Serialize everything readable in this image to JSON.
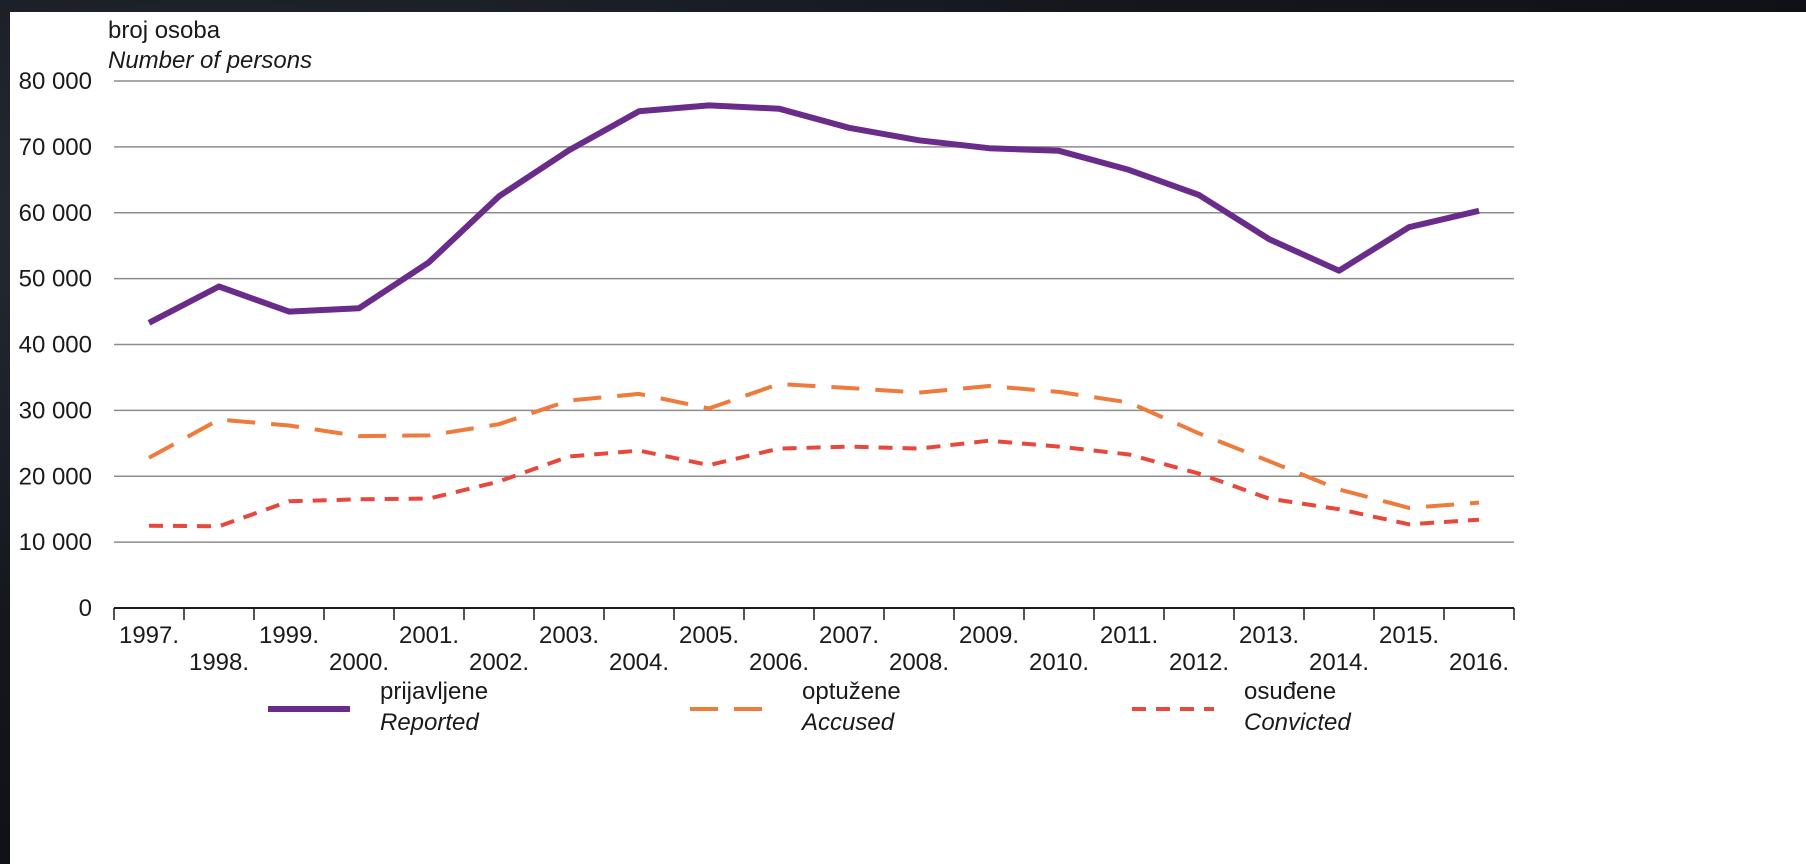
{
  "chart_data": {
    "type": "line",
    "ylabel_hr": "broj osoba",
    "ylabel_en": "Number of persons",
    "x": [
      "1997.",
      "1998.",
      "1999.",
      "2000.",
      "2001.",
      "2002.",
      "2003.",
      "2004.",
      "2005.",
      "2006.",
      "2007.",
      "2008.",
      "2009.",
      "2010.",
      "2011.",
      "2012.",
      "2013.",
      "2014.",
      "2015.",
      "2016."
    ],
    "ylim": [
      0,
      80000
    ],
    "yticks": [
      0,
      10000,
      20000,
      30000,
      40000,
      50000,
      60000,
      70000,
      80000
    ],
    "ytick_labels": [
      "0",
      "10 000",
      "20 000",
      "30 000",
      "40 000",
      "50 000",
      "60 000",
      "70 000",
      "80 000"
    ],
    "grid": "horizontal",
    "legend_position": "bottom",
    "series": [
      {
        "name_hr": "prijavljene",
        "name_en": "Reported",
        "style": "solid",
        "color": "#6a2c8a",
        "values": [
          43300,
          48800,
          45000,
          45500,
          52500,
          62500,
          69500,
          75400,
          76300,
          75800,
          72900,
          71000,
          69800,
          69400,
          66500,
          62700,
          56000,
          51200,
          57800,
          60300
        ]
      },
      {
        "name_hr": "optužene",
        "name_en": "Accused",
        "style": "dashed",
        "color": "#ee7a3c",
        "values": [
          22800,
          28600,
          27700,
          26100,
          26200,
          27900,
          31500,
          32500,
          30300,
          34000,
          33400,
          32700,
          33700,
          32800,
          31200,
          26500,
          22300,
          18000,
          15200,
          16000
        ]
      },
      {
        "name_hr": "osuđene",
        "name_en": "Convicted",
        "style": "dashed-short",
        "color": "#e8473b",
        "values": [
          12500,
          12400,
          16200,
          16500,
          16600,
          19200,
          23000,
          23900,
          21700,
          24200,
          24500,
          24200,
          25400,
          24500,
          23300,
          20400,
          16600,
          15000,
          12700,
          13400
        ]
      }
    ]
  }
}
